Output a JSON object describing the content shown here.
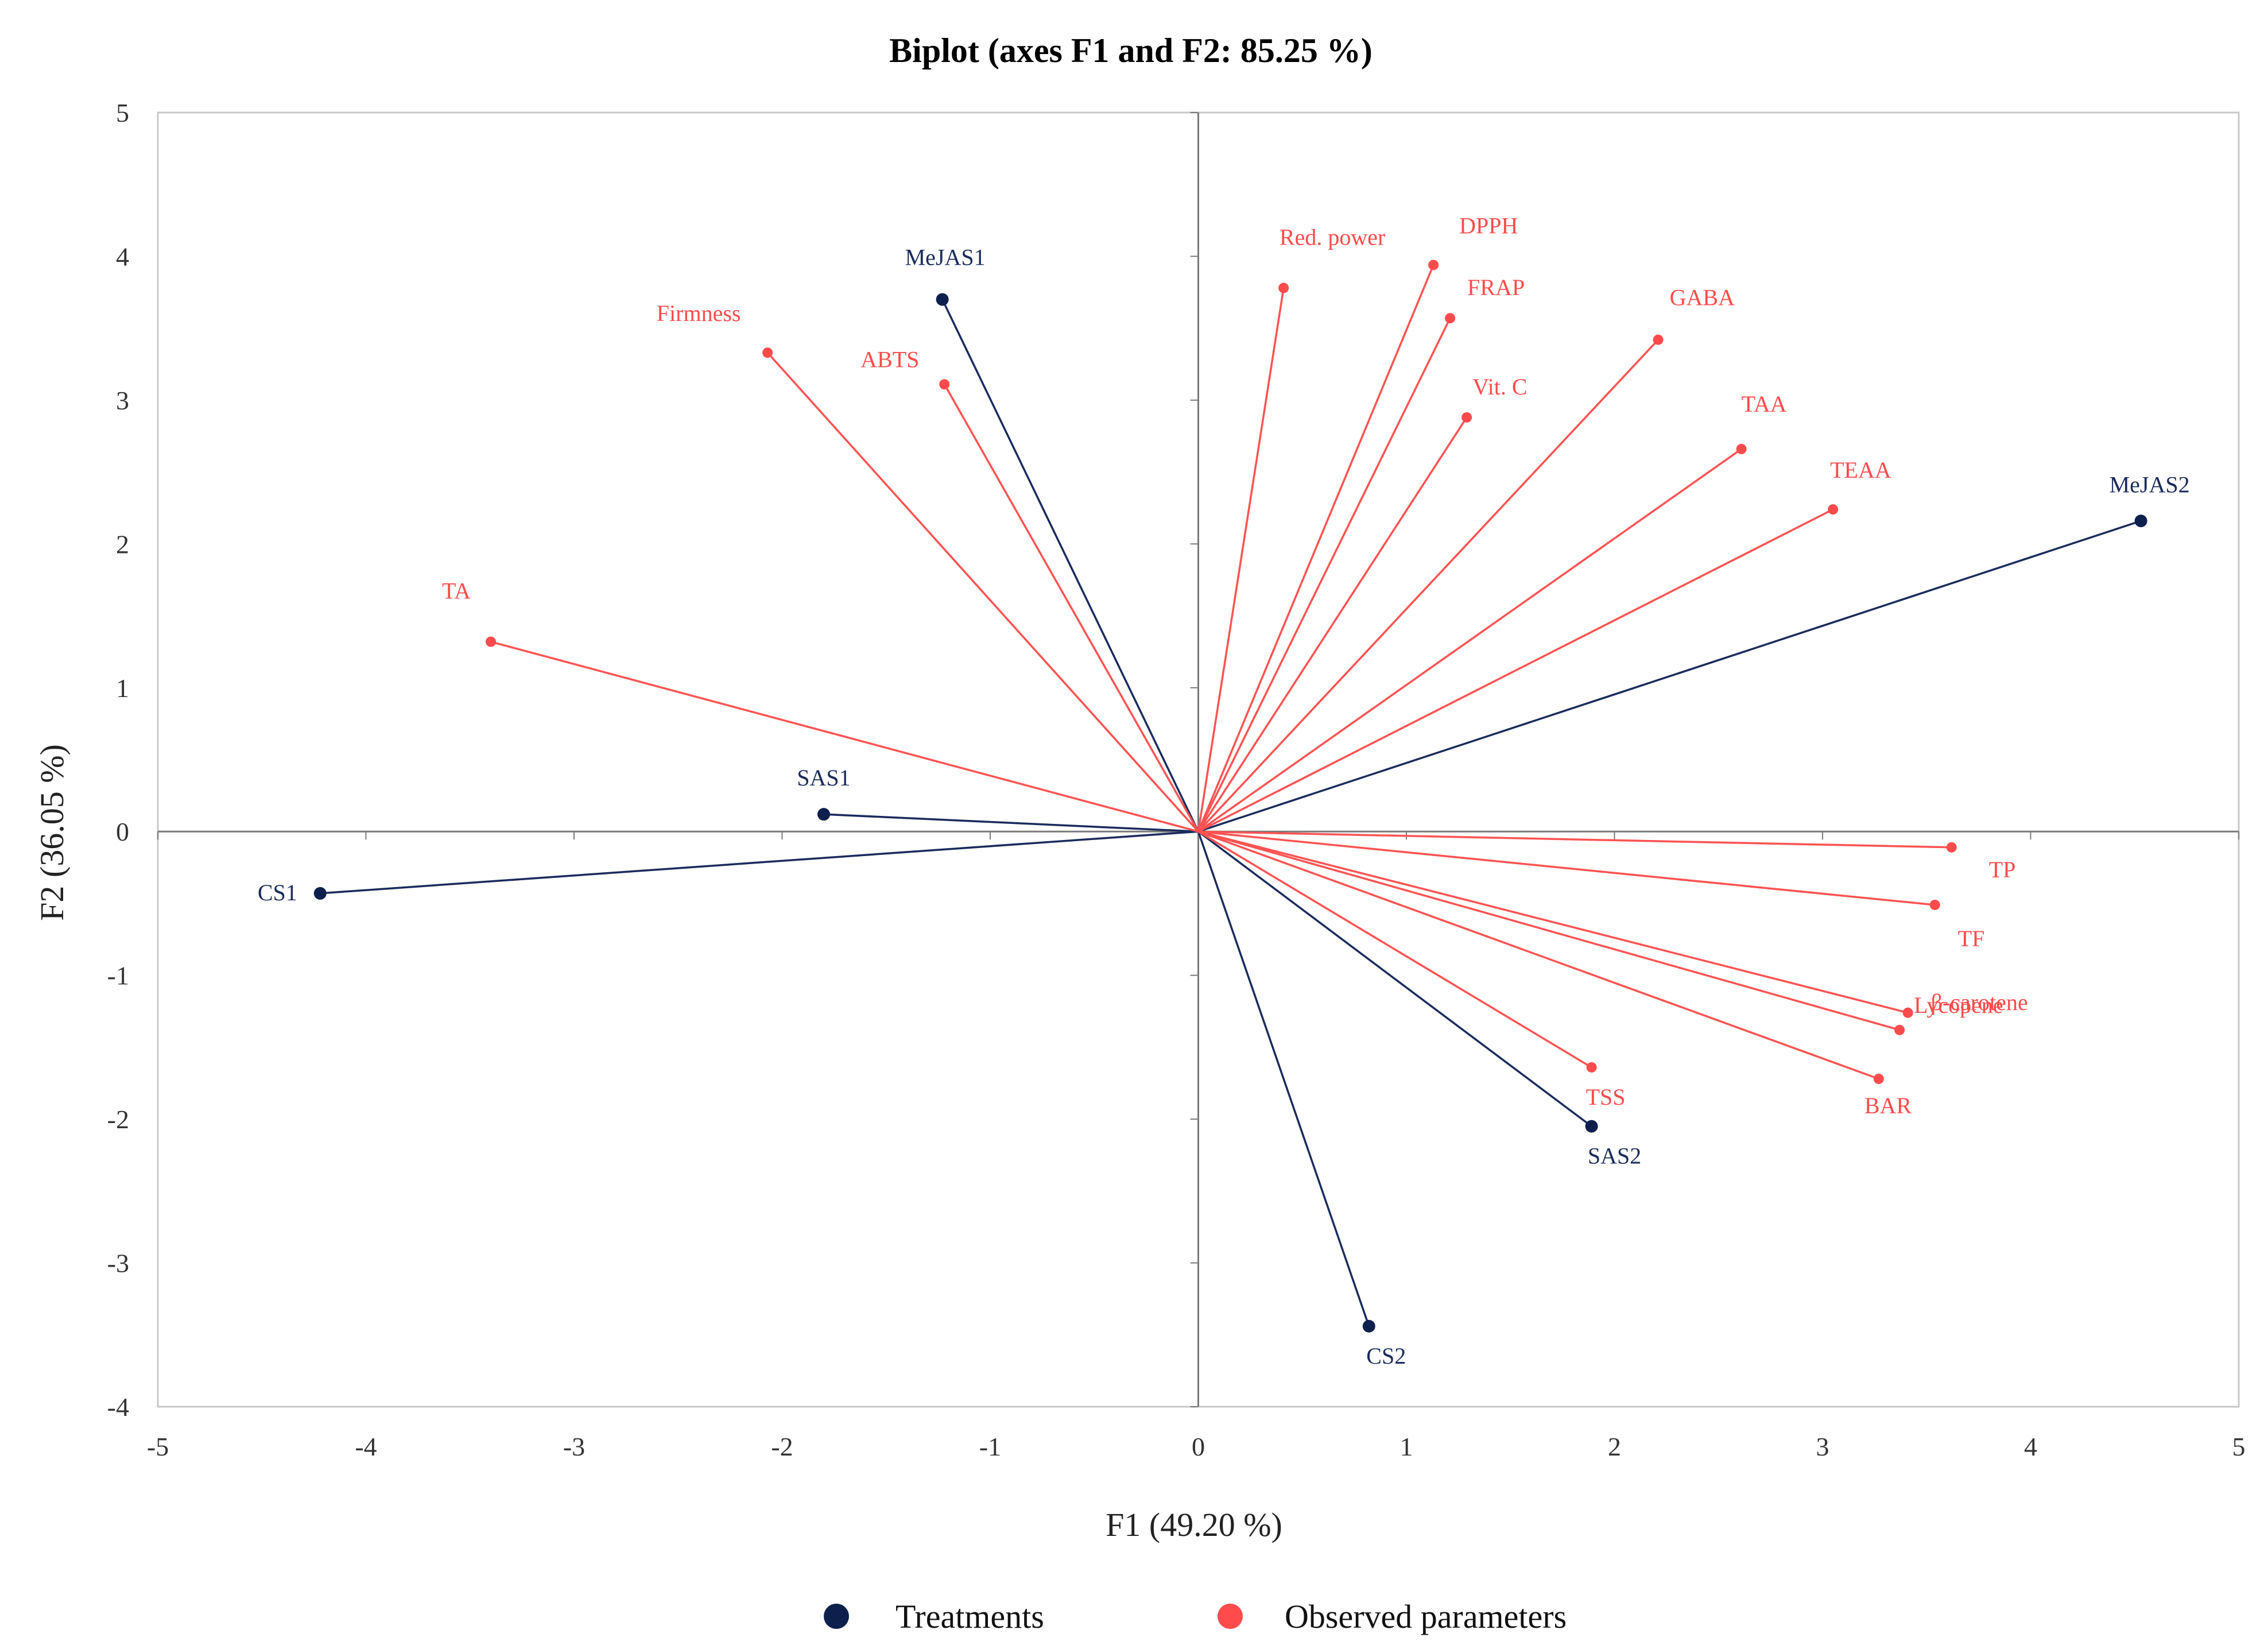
{
  "chart_data": {
    "type": "scatter",
    "subtype": "biplot",
    "title": "Biplot (axes F1 and F2: 85.25 %)",
    "xlabel": "F1 (49.20 %)",
    "ylabel": "F2 (36.05 %)",
    "xlim": [
      -5,
      5
    ],
    "ylim": [
      -4,
      5
    ],
    "xticks": [
      "-5",
      "-4",
      "-3",
      "-2",
      "-1",
      "0",
      "1",
      "2",
      "3",
      "4",
      "5"
    ],
    "yticks": [
      "-4",
      "-3",
      "-2",
      "-1",
      "0",
      "1",
      "2",
      "3",
      "4",
      "5"
    ],
    "grid": false,
    "legend": {
      "placement": "bottom",
      "entries": [
        {
          "name": "Treatments",
          "color": "#0d1f4d"
        },
        {
          "name": "Observed parameters",
          "color": "#ff4b4b"
        }
      ]
    },
    "series": [
      {
        "name": "Treatments",
        "color": "#0d1f4d",
        "line_color": "#1a2b5c",
        "points": [
          {
            "label": "MeJAS1",
            "x": -1.23,
            "y": 3.7
          },
          {
            "label": "SAS1",
            "x": -1.8,
            "y": 0.12
          },
          {
            "label": "CS1",
            "x": -4.22,
            "y": -0.43
          },
          {
            "label": "MeJAS2",
            "x": 4.53,
            "y": 2.16
          },
          {
            "label": "SAS2",
            "x": 1.89,
            "y": -2.05
          },
          {
            "label": "CS2",
            "x": 0.82,
            "y": -3.44
          }
        ]
      },
      {
        "name": "Observed parameters",
        "color": "#ff4b4b",
        "line_color": "#ff5252",
        "points": [
          {
            "label": "Firmness",
            "x": -2.07,
            "y": 3.33
          },
          {
            "label": "ABTS",
            "x": -1.22,
            "y": 3.11
          },
          {
            "label": "TA",
            "x": -3.4,
            "y": 1.32
          },
          {
            "label": "Red. power",
            "x": 0.41,
            "y": 3.78
          },
          {
            "label": "DPPH",
            "x": 1.13,
            "y": 3.94
          },
          {
            "label": "FRAP",
            "x": 1.21,
            "y": 3.57
          },
          {
            "label": "Vit. C",
            "x": 1.29,
            "y": 2.88
          },
          {
            "label": "GABA",
            "x": 2.21,
            "y": 3.42
          },
          {
            "label": "TAA",
            "x": 2.61,
            "y": 2.66
          },
          {
            "label": "TEAA",
            "x": 3.05,
            "y": 2.24
          },
          {
            "label": "TP",
            "x": 3.62,
            "y": -0.11
          },
          {
            "label": "TF",
            "x": 3.54,
            "y": -0.51
          },
          {
            "label": "β-carotene",
            "x": 3.41,
            "y": -1.26
          },
          {
            "label": "Lycopene",
            "x": 3.37,
            "y": -1.38
          },
          {
            "label": "BAR",
            "x": 3.27,
            "y": -1.72
          },
          {
            "label": "TSS",
            "x": 1.89,
            "y": -1.64
          }
        ]
      }
    ]
  }
}
